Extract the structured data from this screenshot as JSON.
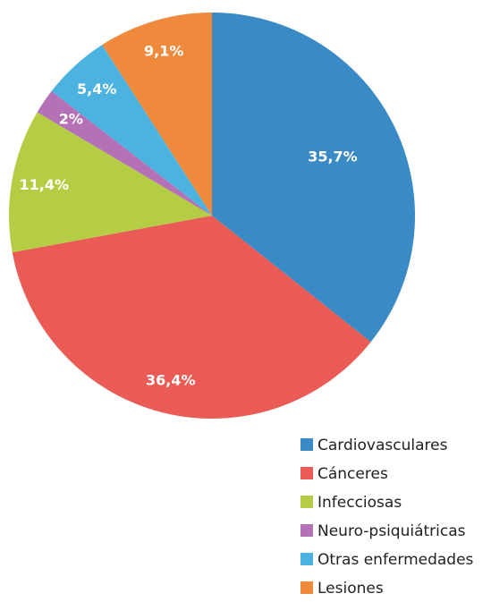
{
  "chart_data": {
    "type": "pie",
    "categories": [
      "Cardiovasculares",
      "Cánceres",
      "Infecciosas",
      "Neuro-psiquiátricas",
      "Otras enfermedades",
      "Lesiones"
    ],
    "values": [
      35.7,
      36.4,
      11.4,
      2,
      5.4,
      9.1
    ],
    "value_labels": [
      "35,7%",
      "36,4%",
      "11,4%",
      "2%",
      "5,4%",
      "9,1%"
    ],
    "colors": [
      "#3a8bc5",
      "#e95b54",
      "#b5cd45",
      "#b471b5",
      "#4cb3e1",
      "#ef8a3d"
    ]
  }
}
